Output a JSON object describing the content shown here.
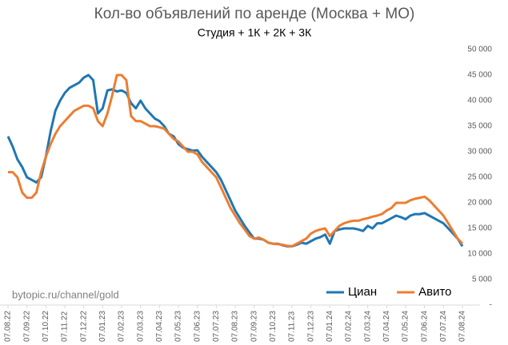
{
  "chart_data": {
    "type": "line",
    "title": "Кол-во объявлений по аренде (Москва + МО)",
    "subtitle": "Студия + 1К + 2К + 3К",
    "annotation": "bytopic.ru/channel/gold",
    "categories": [
      "07.08.22",
      null,
      null,
      null,
      "07.09.22",
      null,
      null,
      null,
      "07.10.22",
      null,
      null,
      null,
      "07.11.22",
      null,
      null,
      null,
      "07.12.22",
      null,
      null,
      null,
      "07.01.23",
      null,
      null,
      null,
      "07.02.23",
      null,
      null,
      null,
      "07.03.23",
      null,
      null,
      null,
      "07.04.23",
      null,
      null,
      null,
      "07.05.23",
      null,
      null,
      null,
      "07.06.23",
      null,
      null,
      null,
      "07.07.23",
      null,
      null,
      null,
      "07.08.23",
      null,
      null,
      null,
      "07.09.23",
      null,
      null,
      null,
      "07.10.23",
      null,
      null,
      null,
      "07.11.23",
      null,
      null,
      null,
      "07.12.23",
      null,
      null,
      null,
      "07.01.24",
      null,
      null,
      null,
      "07.02.24",
      null,
      null,
      null,
      "07.03.24",
      null,
      null,
      null,
      "07.04.24",
      null,
      null,
      null,
      "07.05.24",
      null,
      null,
      null,
      "07.06.24",
      null,
      null,
      null,
      "07.07.24",
      null,
      null,
      null,
      "07.08.24"
    ],
    "series": [
      {
        "name": "Циан",
        "color": "#1f77b4",
        "values": [
          33000,
          31000,
          28500,
          27000,
          25000,
          24500,
          24000,
          25000,
          29000,
          34000,
          38000,
          40000,
          41500,
          42500,
          43000,
          43500,
          44500,
          45000,
          44000,
          37500,
          38500,
          42000,
          42200,
          41800,
          42000,
          41500,
          39500,
          38500,
          40000,
          38500,
          37500,
          36500,
          36000,
          35000,
          33500,
          33000,
          31500,
          30800,
          30500,
          30200,
          30300,
          29000,
          28000,
          27000,
          26000,
          24500,
          22500,
          20500,
          18500,
          17000,
          15500,
          14200,
          13000,
          13000,
          12800,
          12200,
          12000,
          12000,
          11700,
          11500,
          11500,
          11800,
          12200,
          12000,
          12500,
          13000,
          13300,
          13800,
          12000,
          14500,
          14800,
          15000,
          15000,
          15000,
          14800,
          14500,
          15500,
          15000,
          16000,
          16000,
          16500,
          17000,
          17500,
          17200,
          16800,
          17500,
          17800,
          17800,
          18000,
          17500,
          17000,
          16500,
          16000,
          15000,
          14000,
          13000,
          11500
        ]
      },
      {
        "name": "Авито",
        "color": "#ed7d31",
        "values": [
          26000,
          26000,
          25000,
          22000,
          21000,
          21000,
          22000,
          26000,
          29000,
          31500,
          33500,
          35000,
          36000,
          37000,
          38000,
          38500,
          39000,
          39000,
          38500,
          36000,
          35000,
          37500,
          41000,
          45000,
          45000,
          44000,
          37000,
          36000,
          36000,
          35500,
          35000,
          35000,
          34800,
          34500,
          33500,
          32500,
          32000,
          31000,
          30000,
          30000,
          29500,
          28000,
          27000,
          26000,
          25000,
          23000,
          21000,
          19000,
          17500,
          16000,
          14800,
          13500,
          13000,
          13200,
          12800,
          12200,
          12000,
          11900,
          11800,
          11600,
          11500,
          12000,
          12500,
          13000,
          14000,
          14500,
          14800,
          15000,
          13500,
          14500,
          15500,
          16000,
          16300,
          16500,
          16500,
          16800,
          17000,
          17300,
          17500,
          17800,
          18500,
          19000,
          20000,
          20000,
          20000,
          20500,
          20800,
          21000,
          21200,
          20500,
          19500,
          18500,
          17500,
          16000,
          14500,
          13000,
          12000
        ]
      }
    ],
    "ylim": [
      0,
      50000
    ],
    "yticks": [
      {
        "value": 0,
        "label": "-"
      },
      {
        "value": 5000,
        "label": "5 000"
      },
      {
        "value": 10000,
        "label": "10 000"
      },
      {
        "value": 15000,
        "label": "15 000"
      },
      {
        "value": 20000,
        "label": "20 000"
      },
      {
        "value": 25000,
        "label": "25 000"
      },
      {
        "value": 30000,
        "label": "30 000"
      },
      {
        "value": 35000,
        "label": "35 000"
      },
      {
        "value": 40000,
        "label": "40 000"
      },
      {
        "value": 45000,
        "label": "45 000"
      },
      {
        "value": 50000,
        "label": "50 000"
      }
    ],
    "y_axis_position": "right",
    "grid": false,
    "legend": "lower right"
  }
}
